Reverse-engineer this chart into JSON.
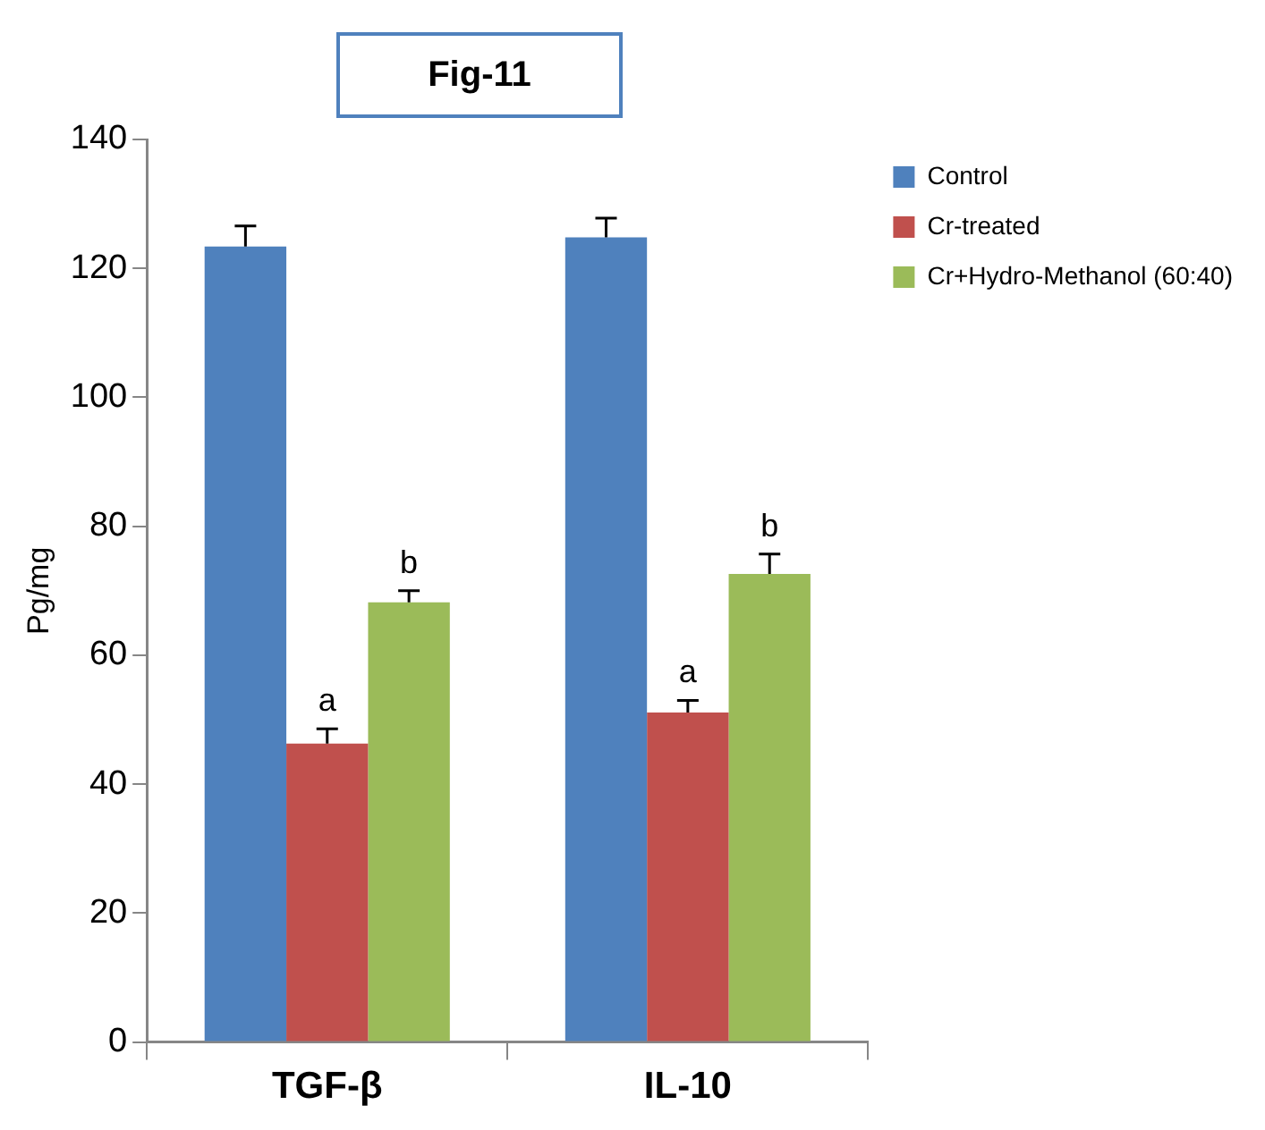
{
  "chart_data": {
    "type": "bar",
    "title": "Fig-11",
    "ylabel": "Pg/mg",
    "categories": [
      "TGF-β",
      "IL-10"
    ],
    "series": [
      {
        "name": "Control",
        "color": "#4f81bd",
        "values": [
          123.4,
          124.8
        ],
        "errors": [
          [
            123.4,
            126.6
          ],
          [
            124.8,
            127.8
          ]
        ]
      },
      {
        "name": "Cr-treated",
        "color": "#c0504d",
        "values": [
          46.3,
          51.1
        ],
        "errors": [
          [
            46.3,
            48.6
          ],
          [
            51.1,
            53.0
          ]
        ]
      },
      {
        "name": "Cr+Hydro-Methanol (60:40)",
        "color": "#9bbb59",
        "values": [
          68.2,
          72.6
        ],
        "errors": [
          [
            68.2,
            70.0
          ],
          [
            72.6,
            75.7
          ]
        ]
      }
    ],
    "annotations": [
      "a",
      "b",
      "a",
      "b"
    ],
    "ylim": [
      0,
      140
    ],
    "yticks": [
      0,
      20,
      40,
      60,
      80,
      100,
      120,
      140
    ],
    "grid": false,
    "legend": "top right"
  }
}
